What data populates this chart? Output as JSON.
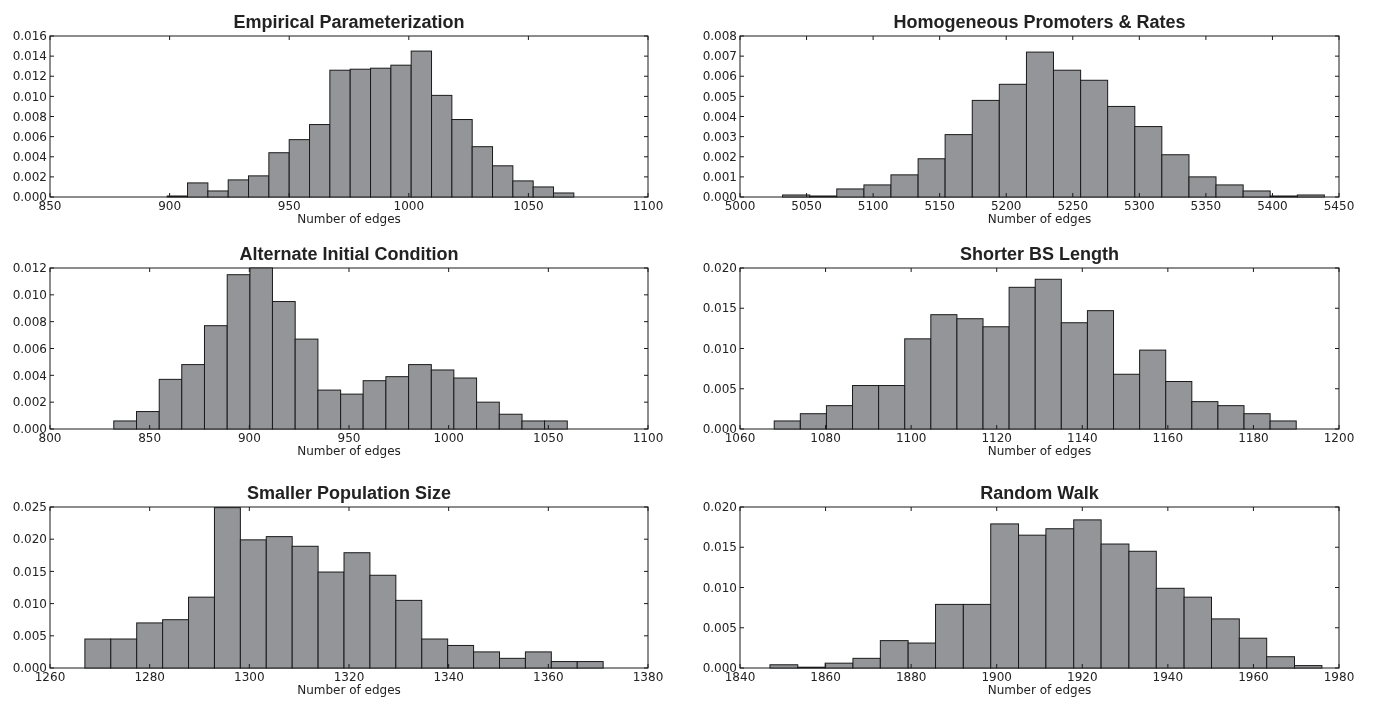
{
  "chart_data": [
    {
      "type": "histogram",
      "title": "Empirical Parameterization",
      "xlabel": "Number of edges",
      "color": "#939598",
      "bins": [
        899,
        907.5,
        916,
        924.5,
        933,
        941.5,
        950,
        958.5,
        967,
        975.5,
        984,
        992.5,
        1001,
        1009.5,
        1018,
        1026.5,
        1035,
        1043.5,
        1052,
        1060.5,
        1069
      ],
      "values": [
        0.0001,
        0.0014,
        0.0006,
        0.0017,
        0.0021,
        0.0044,
        0.0057,
        0.0072,
        0.0126,
        0.0127,
        0.0128,
        0.0131,
        0.0145,
        0.0101,
        0.0077,
        0.005,
        0.0031,
        0.0016,
        0.001,
        0.0004
      ],
      "xlim": [
        850,
        1100
      ],
      "xticks": [
        850,
        900,
        950,
        1000,
        1050,
        1100
      ],
      "ylim": [
        0,
        0.016
      ],
      "yticks": [
        {
          "value": 0,
          "label": "0.000"
        },
        {
          "value": 0.002,
          "label": "0.002"
        },
        {
          "value": 0.004,
          "label": "0.004"
        },
        {
          "value": 0.006,
          "label": "0.006"
        },
        {
          "value": 0.008,
          "label": "0.008"
        },
        {
          "value": 0.01,
          "label": "0.010"
        },
        {
          "value": 0.012,
          "label": "0.012"
        },
        {
          "value": 0.014,
          "label": "0.014"
        },
        {
          "value": 0.016,
          "label": "0.016"
        }
      ]
    },
    {
      "type": "histogram",
      "title": "Homogeneous Promoters & Rates",
      "xlabel": "Number of edges",
      "color": "#939598",
      "bins": [
        5032,
        5052.4,
        5072.7,
        5093.1,
        5113.4,
        5133.8,
        5154.1,
        5174.5,
        5194.8,
        5215.2,
        5235.5,
        5255.9,
        5276.2,
        5296.6,
        5316.9,
        5337.3,
        5357.6,
        5378,
        5398.3,
        5418.7,
        5439
      ],
      "values": [
        0.0001,
        5e-05,
        0.0004,
        0.0006,
        0.0011,
        0.0019,
        0.0031,
        0.0048,
        0.0056,
        0.0072,
        0.0063,
        0.0058,
        0.0045,
        0.0035,
        0.0021,
        0.001,
        0.0006,
        0.0003,
        5e-05,
        0.0001
      ],
      "xlim": [
        5000,
        5450
      ],
      "xticks": [
        5000,
        5050,
        5100,
        5150,
        5200,
        5250,
        5300,
        5350,
        5400,
        5450
      ],
      "ylim": [
        0,
        0.008
      ],
      "yticks": [
        {
          "value": 0,
          "label": "0.000"
        },
        0.001,
        0.002,
        0.003,
        0.004,
        0.005,
        0.006,
        0.007,
        0.008
      ]
    },
    {
      "type": "histogram",
      "title": "Alternate Initial Condition",
      "xlabel": "Number of edges",
      "color": "#939598",
      "bins": [
        832,
        843.4,
        854.8,
        866.1,
        877.5,
        888.9,
        900.3,
        911.6,
        923,
        934.4,
        945.8,
        957.1,
        968.5,
        979.9,
        991.3,
        1002.6,
        1014,
        1025.4,
        1036.8,
        1048.1,
        1059.5
      ],
      "values": [
        0.0006,
        0.0013,
        0.0037,
        0.0048,
        0.0077,
        0.0115,
        0.012,
        0.0095,
        0.0067,
        0.0029,
        0.0026,
        0.0036,
        0.0039,
        0.0048,
        0.0044,
        0.0038,
        0.002,
        0.0011,
        0.0006,
        0.0006
      ],
      "xlim": [
        800,
        1100
      ],
      "xticks": [
        800,
        850,
        900,
        950,
        1000,
        1050,
        1100
      ],
      "ylim": [
        0,
        0.012
      ],
      "yticks": [
        {
          "value": 0,
          "label": "0.000"
        },
        {
          "value": 0.002,
          "label": "0.002"
        },
        {
          "value": 0.004,
          "label": "0.004"
        },
        {
          "value": 0.006,
          "label": "0.006"
        },
        {
          "value": 0.008,
          "label": "0.008"
        },
        {
          "value": 0.01,
          "label": "0.010"
        },
        {
          "value": 0.012,
          "label": "0.012"
        }
      ]
    },
    {
      "type": "histogram",
      "title": "Shorter BS Length",
      "xlabel": "Number of edges",
      "color": "#939598",
      "bins": [
        1068,
        1074.1,
        1080.2,
        1086.3,
        1092.4,
        1098.5,
        1104.6,
        1110.7,
        1116.8,
        1122.9,
        1129,
        1135.1,
        1141.2,
        1147.3,
        1153.4,
        1159.5,
        1165.6,
        1171.7,
        1177.8,
        1183.9,
        1190
      ],
      "values": [
        0.001,
        0.0019,
        0.0029,
        0.0054,
        0.0054,
        0.0112,
        0.0142,
        0.0137,
        0.0127,
        0.0176,
        0.0186,
        0.0132,
        0.0147,
        0.0068,
        0.0098,
        0.0059,
        0.0034,
        0.0029,
        0.0019,
        0.001
      ],
      "xlim": [
        1060,
        1200
      ],
      "xticks": [
        1060,
        1080,
        1100,
        1120,
        1140,
        1160,
        1180,
        1200
      ],
      "ylim": [
        0,
        0.02
      ],
      "yticks": [
        {
          "value": 0,
          "label": "0.000"
        },
        0.005,
        {
          "value": 0.01,
          "label": "0.010"
        },
        0.015,
        {
          "value": 0.02,
          "label": "0.020"
        }
      ]
    },
    {
      "type": "histogram",
      "title": "Smaller Population Size",
      "xlabel": "Number of edges",
      "color": "#939598",
      "bins": [
        1267,
        1272.2,
        1277.4,
        1282.6,
        1287.8,
        1293,
        1298.2,
        1303.4,
        1308.6,
        1313.8,
        1319,
        1324.2,
        1329.4,
        1334.6,
        1339.8,
        1345,
        1350.2,
        1355.4,
        1360.6,
        1365.8,
        1371
      ],
      "values": [
        0.0045,
        0.0045,
        0.007,
        0.0075,
        0.011,
        0.0249,
        0.0199,
        0.0204,
        0.0189,
        0.0149,
        0.0179,
        0.0144,
        0.0105,
        0.0045,
        0.0035,
        0.0025,
        0.0015,
        0.0025,
        0.001,
        0.001
      ],
      "xlim": [
        1260,
        1380
      ],
      "xticks": [
        1260,
        1280,
        1300,
        1320,
        1340,
        1360,
        1380
      ],
      "ylim": [
        0,
        0.025
      ],
      "yticks": [
        {
          "value": 0,
          "label": "0.000"
        },
        0.005,
        {
          "value": 0.01,
          "label": "0.010"
        },
        0.015,
        {
          "value": 0.02,
          "label": "0.020"
        },
        0.025
      ]
    },
    {
      "type": "histogram",
      "title": "Random Walk",
      "xlabel": "Number of edges",
      "color": "#939598",
      "bins": [
        1847,
        1853.5,
        1859.9,
        1866.4,
        1872.8,
        1879.3,
        1885.7,
        1892.2,
        1898.6,
        1905.1,
        1911.5,
        1918,
        1924.4,
        1930.9,
        1937.3,
        1943.8,
        1950.2,
        1956.7,
        1963.1,
        1969.6,
        1976
      ],
      "values": [
        0.0004,
        0.0001,
        0.0006,
        0.0012,
        0.0034,
        0.0031,
        0.0079,
        0.0079,
        0.0179,
        0.0165,
        0.0173,
        0.0184,
        0.0154,
        0.0145,
        0.0099,
        0.0088,
        0.0061,
        0.0037,
        0.0014,
        0.0003
      ],
      "xlim": [
        1840,
        1980
      ],
      "xticks": [
        1840,
        1860,
        1880,
        1900,
        1920,
        1940,
        1960,
        1980
      ],
      "ylim": [
        0,
        0.02
      ],
      "yticks": [
        {
          "value": 0,
          "label": "0.000"
        },
        0.005,
        {
          "value": 0.01,
          "label": "0.010"
        },
        0.015,
        {
          "value": 0.02,
          "label": "0.020"
        }
      ]
    }
  ]
}
